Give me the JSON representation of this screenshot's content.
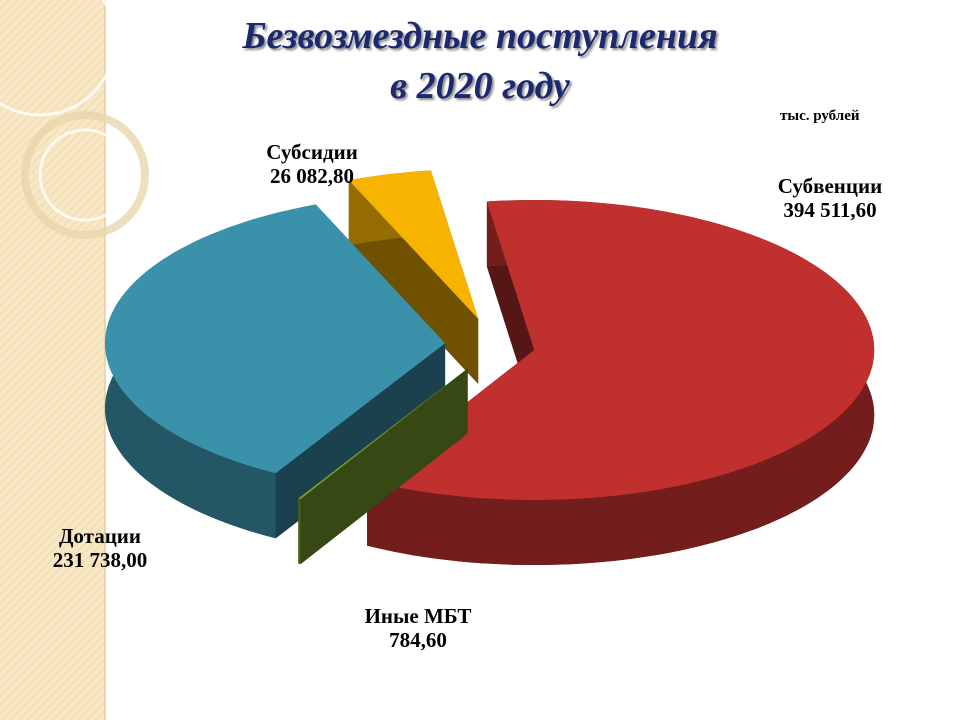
{
  "chart_data": {
    "type": "pie3d",
    "title": [
      "Безвозмездные поступления",
      "в 2020 году"
    ],
    "unit_label": "тыс. рублей",
    "categories": [
      "Субвенции",
      "Иные МБТ",
      "Дотации",
      "Субсидии"
    ],
    "values": [
      394511.6,
      784.6,
      231738.0,
      26082.8
    ],
    "value_labels": [
      "394 511,60",
      "784,60",
      "231 738,00",
      "26 082,80"
    ],
    "colors": [
      "#c0302f",
      "#77a22e",
      "#3a91aa",
      "#f6b400"
    ]
  }
}
